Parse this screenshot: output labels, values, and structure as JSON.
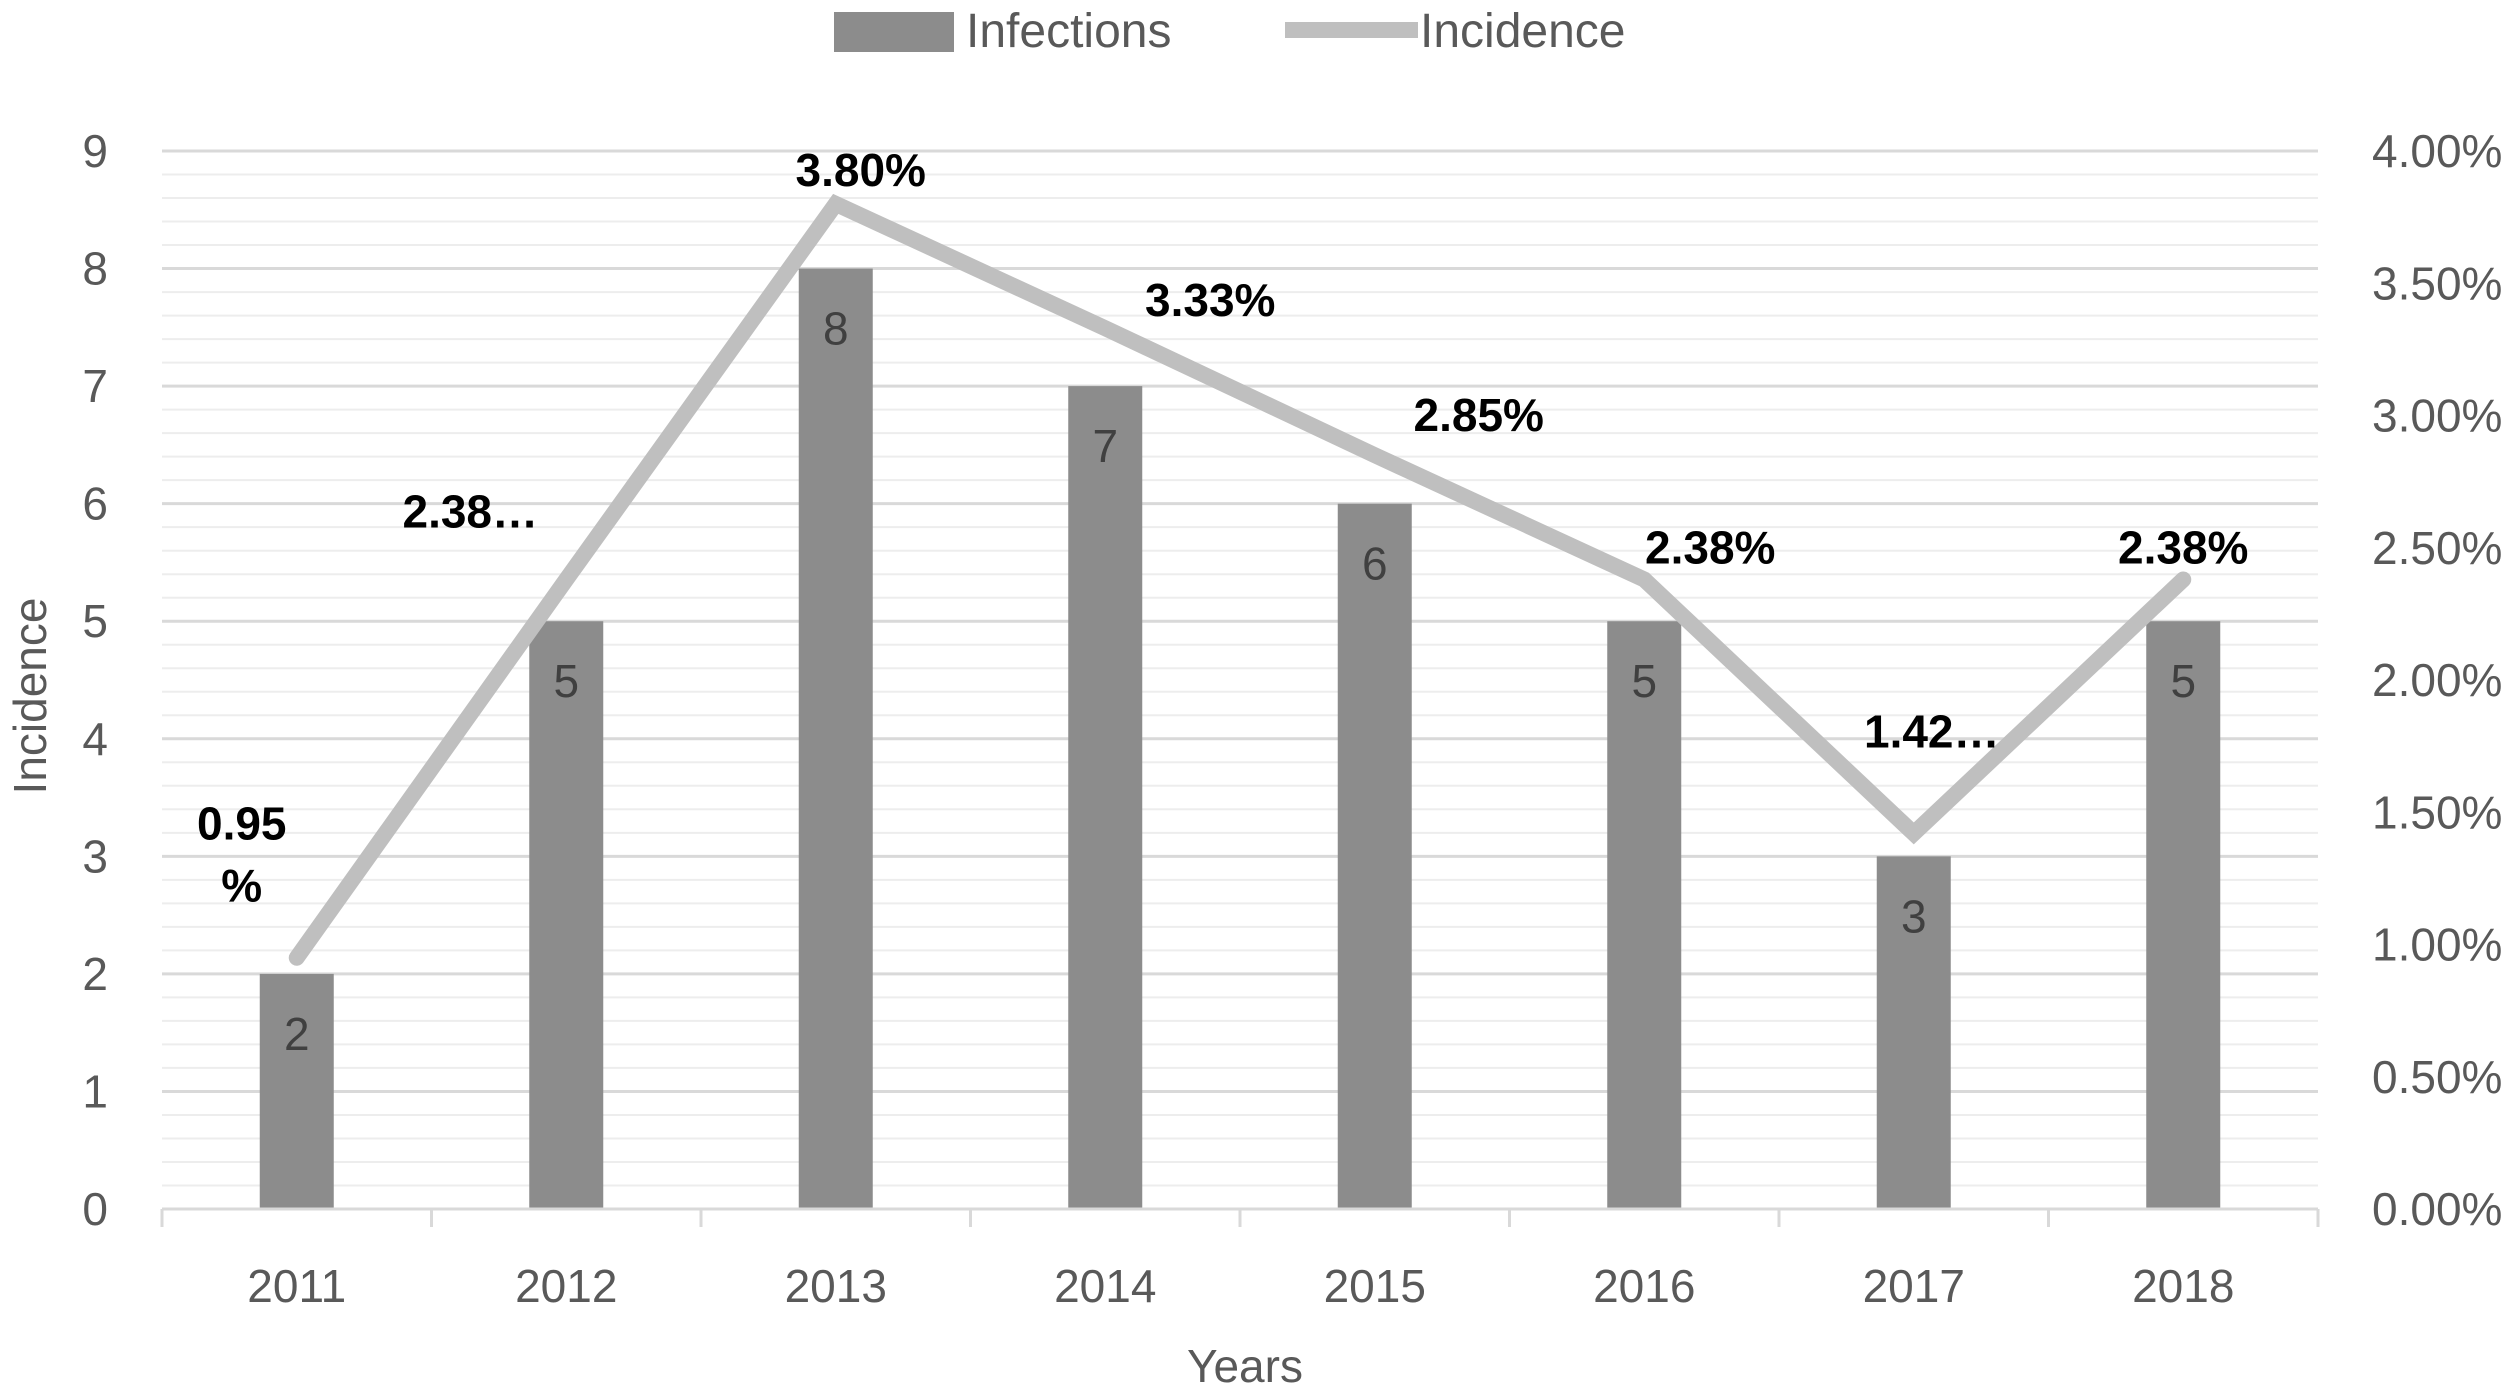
{
  "chart_data": {
    "type": "bar+line",
    "categories": [
      "2011",
      "2012",
      "2013",
      "2014",
      "2015",
      "2016",
      "2017",
      "2018"
    ],
    "series": [
      {
        "name": "Infections",
        "type": "bar",
        "axis": "left",
        "color": "#8c8c8c",
        "values": [
          2,
          5,
          8,
          7,
          6,
          5,
          3,
          5
        ],
        "labels": [
          "2",
          "5",
          "8",
          "7",
          "6",
          "5",
          "3",
          "5"
        ]
      },
      {
        "name": "Incidence",
        "type": "line",
        "axis": "right",
        "color": "#bfbfbf",
        "values": [
          0.95,
          2.38,
          3.8,
          3.33,
          2.85,
          2.38,
          1.42,
          2.38
        ],
        "labels": [
          "0.95\n%",
          "2.38…",
          "3.80%",
          "3.33%",
          "2.85%",
          "2.38%",
          "1.42…",
          "2.38%"
        ]
      }
    ],
    "xlabel": "Years",
    "ylabel": "Incidence",
    "ylim": [
      0,
      9
    ],
    "y_ticks": [
      "0",
      "1",
      "2",
      "3",
      "4",
      "5",
      "6",
      "7",
      "8",
      "9"
    ],
    "y2lim": [
      0,
      4
    ],
    "y2_ticks": [
      "0.00%",
      "0.50%",
      "1.00%",
      "1.50%",
      "2.00%",
      "2.50%",
      "3.00%",
      "3.50%",
      "4.00%"
    ],
    "grid": true,
    "legend": "top-center"
  }
}
